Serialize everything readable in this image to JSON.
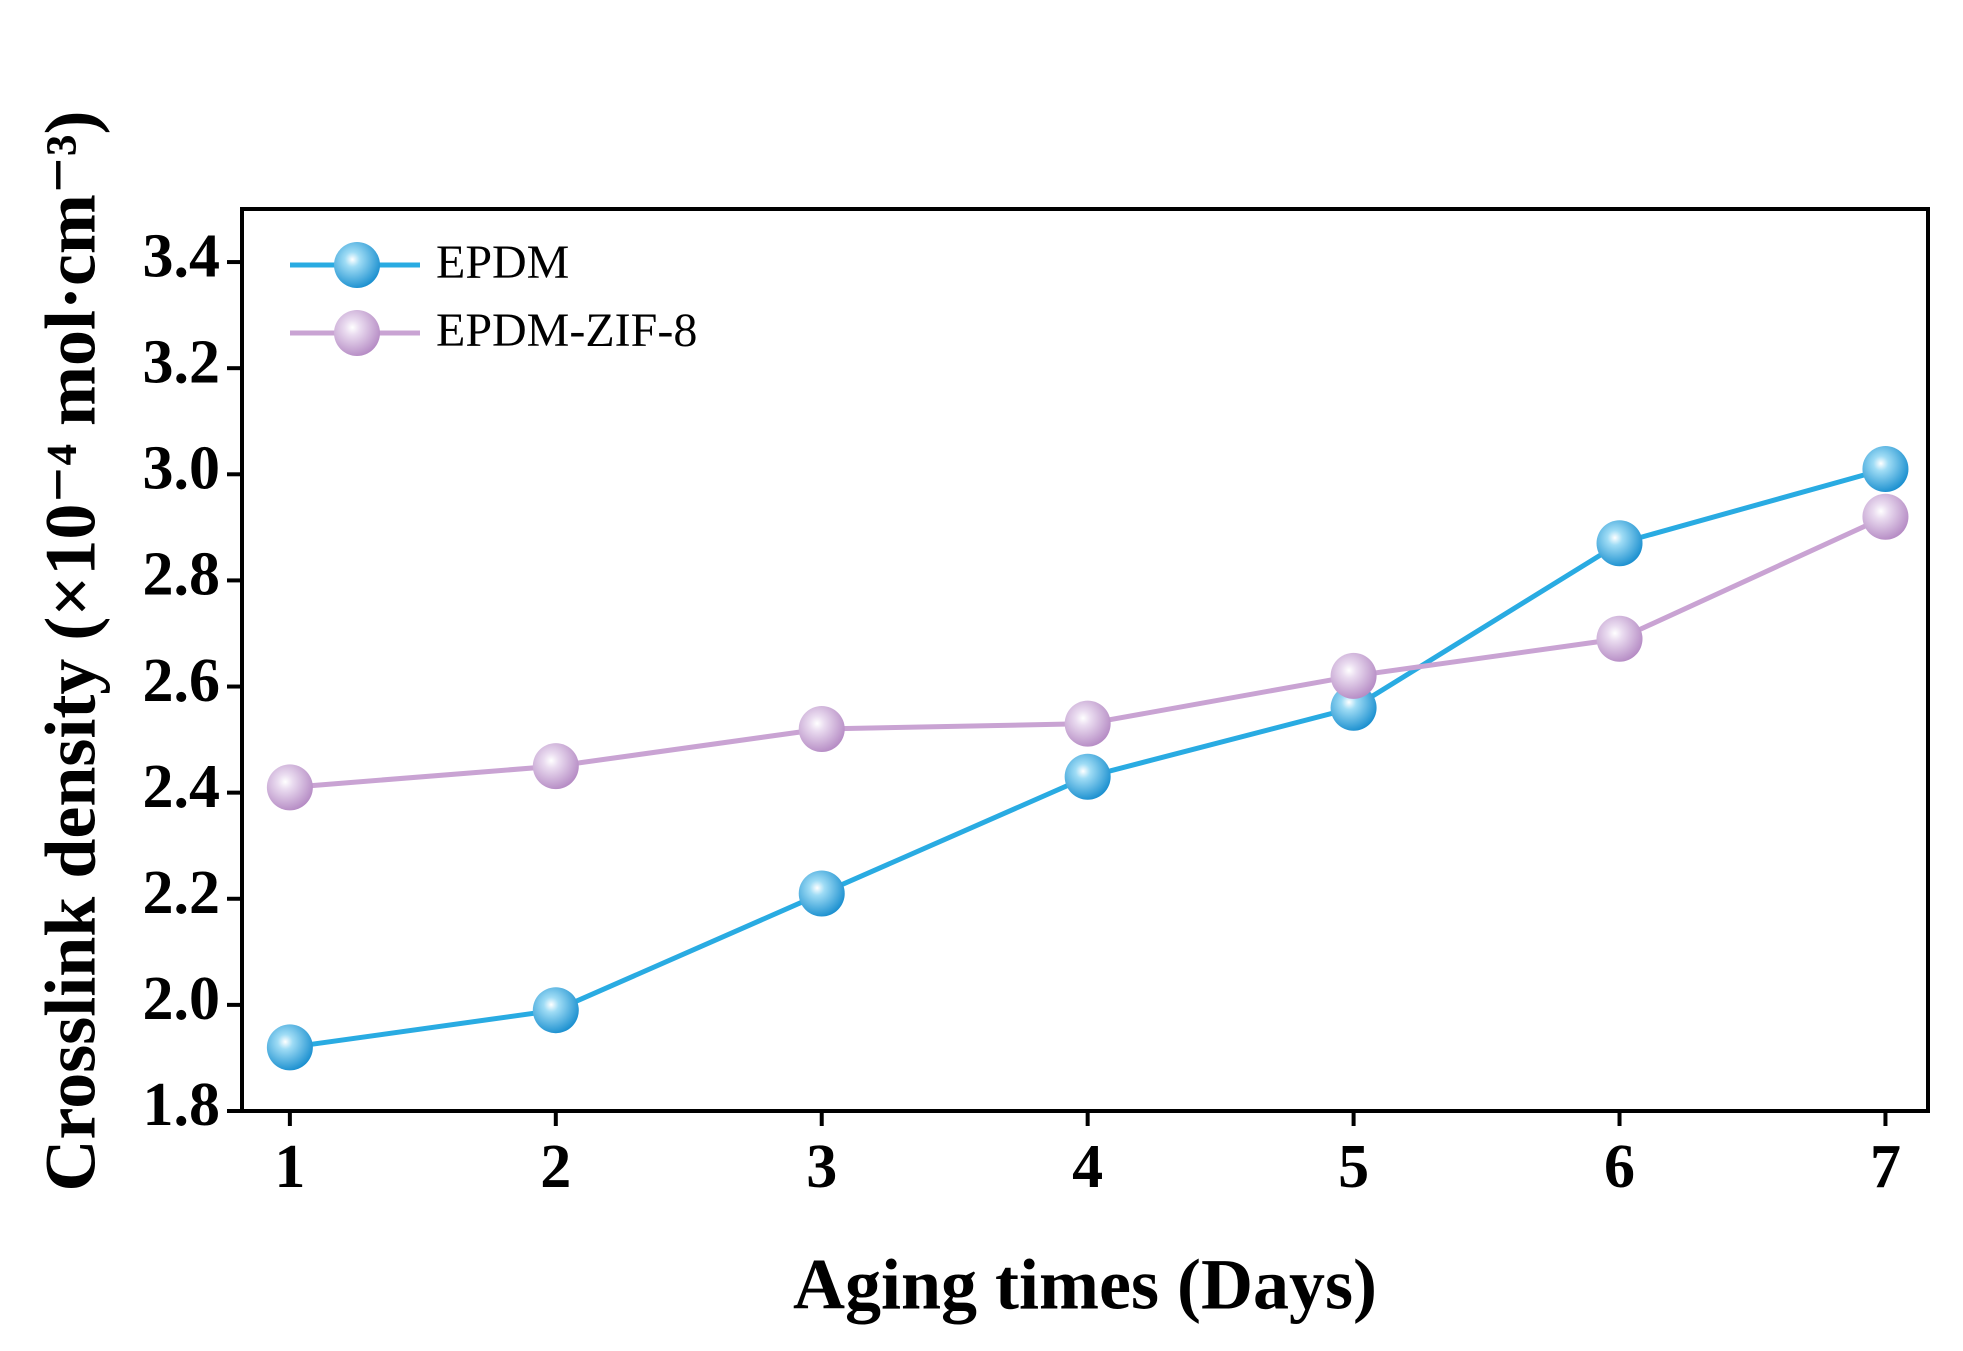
{
  "chart_data": {
    "type": "line",
    "x_label": "Aging times (Days)",
    "y_label": "Crosslink density (×10⁻⁴ mol·cm⁻³)",
    "x": [
      1,
      2,
      3,
      4,
      5,
      6,
      7
    ],
    "series": [
      {
        "name": "EPDM",
        "color": "#29abe2",
        "values": [
          1.92,
          1.99,
          2.21,
          2.43,
          2.56,
          2.87,
          3.01
        ]
      },
      {
        "name": "EPDM-ZIF-8",
        "color": "#c9a3d3",
        "values": [
          2.41,
          2.45,
          2.52,
          2.53,
          2.62,
          2.69,
          2.92
        ]
      }
    ],
    "xlim": [
      0.82,
      7.16
    ],
    "xticks": [
      1,
      2,
      3,
      4,
      5,
      6,
      7
    ],
    "ylim": [
      1.8,
      3.5
    ],
    "yticks": [
      {
        "value": 1.8,
        "label": "1.8"
      },
      {
        "value": 2.0,
        "label": "2.0"
      },
      {
        "value": 2.2,
        "label": "2.2"
      },
      {
        "value": 2.4,
        "label": "2.4"
      },
      {
        "value": 2.6,
        "label": "2.6"
      },
      {
        "value": 2.8,
        "label": "2.8"
      },
      {
        "value": 3.0,
        "label": "3.0"
      },
      {
        "value": 3.2,
        "label": "3.2"
      },
      {
        "value": 3.4,
        "label": "3.4"
      }
    ],
    "legend": "upper left",
    "grid": false
  }
}
